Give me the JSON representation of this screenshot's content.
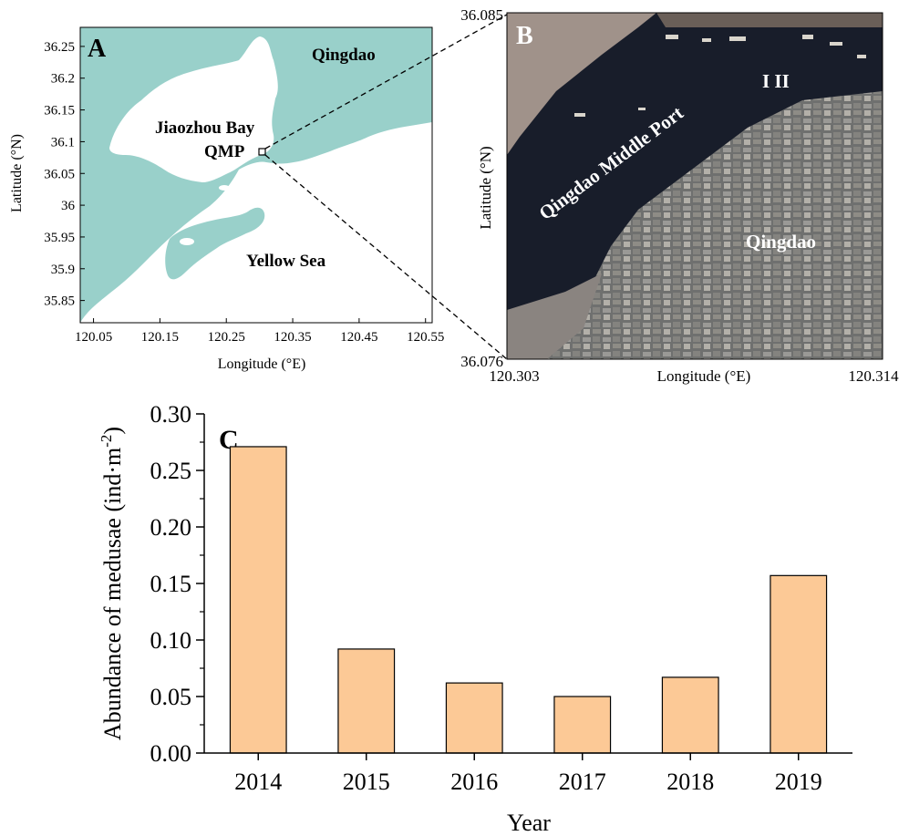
{
  "panelA": {
    "letter": "A",
    "labels": {
      "qingdao": "Qingdao",
      "jiaozhou": "Jiaozhou Bay",
      "qmp": "QMP",
      "yellow": "Yellow Sea"
    },
    "xlabel": "Longitude (°E)",
    "ylabel": "Latitude (°N)",
    "xticks": [
      "120.05",
      "120.15",
      "120.25",
      "120.35",
      "120.45",
      "120.55"
    ],
    "yticks": [
      "36.25",
      "36.2",
      "36.15",
      "36.1",
      "36.05",
      "36",
      "35.95",
      "35.9",
      "35.85"
    ],
    "colors": {
      "land": "#99d0ca",
      "water": "#ffffff"
    }
  },
  "panelB": {
    "letter": "B",
    "labels": {
      "port": "Qingdao Middle Port",
      "city": "Qingdao",
      "sites": "I II"
    },
    "xlabel": "Longitude (°E)",
    "ylabel": "Latitude (°N)",
    "xticks": [
      "120.303",
      "120.314"
    ],
    "yticks": [
      "36.085",
      "36.076"
    ]
  },
  "chart_data": {
    "type": "bar",
    "panel_letter": "C",
    "categories": [
      "2014",
      "2015",
      "2016",
      "2017",
      "2018",
      "2019"
    ],
    "values": [
      0.271,
      0.092,
      0.062,
      0.05,
      0.067,
      0.157
    ],
    "xlabel": "Year",
    "ylabel": "Abundance of medusae (ind·m",
    "ylabel_sup": "-2",
    "ylabel_close": ")",
    "ylim": [
      0,
      0.3
    ],
    "yticks": [
      "0.00",
      "0.05",
      "0.10",
      "0.15",
      "0.20",
      "0.25",
      "0.30"
    ],
    "bar_color": "#fcc996",
    "grid": false
  }
}
